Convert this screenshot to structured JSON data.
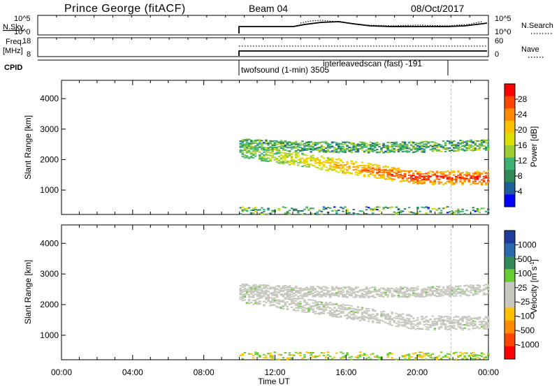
{
  "header": {
    "station": "Prince George (fitACF)",
    "beam": "Beam 04",
    "date": "08/Oct/2017"
  },
  "strip_panels": {
    "sky_label": "N.Sky",
    "sky_ticks": [
      "10^5",
      "10^0"
    ],
    "search_label": "N.Search",
    "search_ticks": [
      "10^5",
      "10^0"
    ],
    "freq_label": "Freq.",
    "freq_unit": "[MHz]",
    "freq_ticks": [
      "18",
      "8"
    ],
    "nave_label": "Nave",
    "nave_ticks": [
      "60",
      "0"
    ],
    "cpid_label": "CPID",
    "cpid_annotations": [
      {
        "text": "twofsound (1-min) 3505",
        "start_hour": 10.0
      },
      {
        "text": "interleavedscan (fast) -191",
        "start_hour": 13.0,
        "end_hour": 22.0
      }
    ]
  },
  "chart_data": [
    {
      "type": "heatmap",
      "name": "power",
      "xlabel": "",
      "ylabel": "Slant Range [km]",
      "xlim": [
        0,
        24
      ],
      "ylim": [
        200,
        4600
      ],
      "yticks": [
        1000,
        2000,
        3000,
        4000
      ],
      "colorbar": {
        "label": "Power [dB]",
        "ticks": [
          "28",
          "24",
          "20",
          "16",
          "12",
          "8",
          "4"
        ],
        "colors": [
          "#ff0000",
          "#ff4500",
          "#ff8c00",
          "#ffc000",
          "#e0e000",
          "#9acd32",
          "#3cb371",
          "#2e8b57",
          "#1c5f9c",
          "#0000ff"
        ]
      },
      "data_start_hour": 10.0,
      "features": [
        {
          "label": "upper band",
          "start_hour": 10.0,
          "end_hour": 24.0,
          "range_start": 2500,
          "range_end": 2400,
          "thickness": 350
        },
        {
          "label": "main descending band",
          "start_hour": 10.0,
          "end_hour": 24.0,
          "range_start": 2300,
          "range_end": 1400,
          "thickness": 450
        },
        {
          "label": "near range clutter",
          "start_hour": 10.0,
          "end_hour": 24.0,
          "range_start": 300,
          "range_end": 300,
          "thickness": 300
        }
      ]
    },
    {
      "type": "heatmap",
      "name": "velocity",
      "xlabel": "Time UT",
      "ylabel": "Slant Range [km]",
      "xlim": [
        0,
        24
      ],
      "ylim": [
        200,
        4600
      ],
      "yticks": [
        1000,
        2000,
        3000,
        4000
      ],
      "xticks": [
        "00:00",
        "04:00",
        "08:00",
        "12:00",
        "16:00",
        "20:00",
        "00:00"
      ],
      "colorbar": {
        "label": "Velocity [m s",
        "label_sup": "-1",
        "label_end": "]",
        "ticks": [
          "1000",
          "500",
          "100",
          "25",
          "-25",
          "-100",
          "-500",
          "-1000"
        ],
        "colors": [
          "#1e3c9c",
          "#2a69b0",
          "#2e8b57",
          "#66cd33",
          "#c8c8c0",
          "#c8c8c0",
          "#ffc000",
          "#ff8c00",
          "#ff4500",
          "#ff0000"
        ]
      },
      "data_start_hour": 10.0
    }
  ]
}
